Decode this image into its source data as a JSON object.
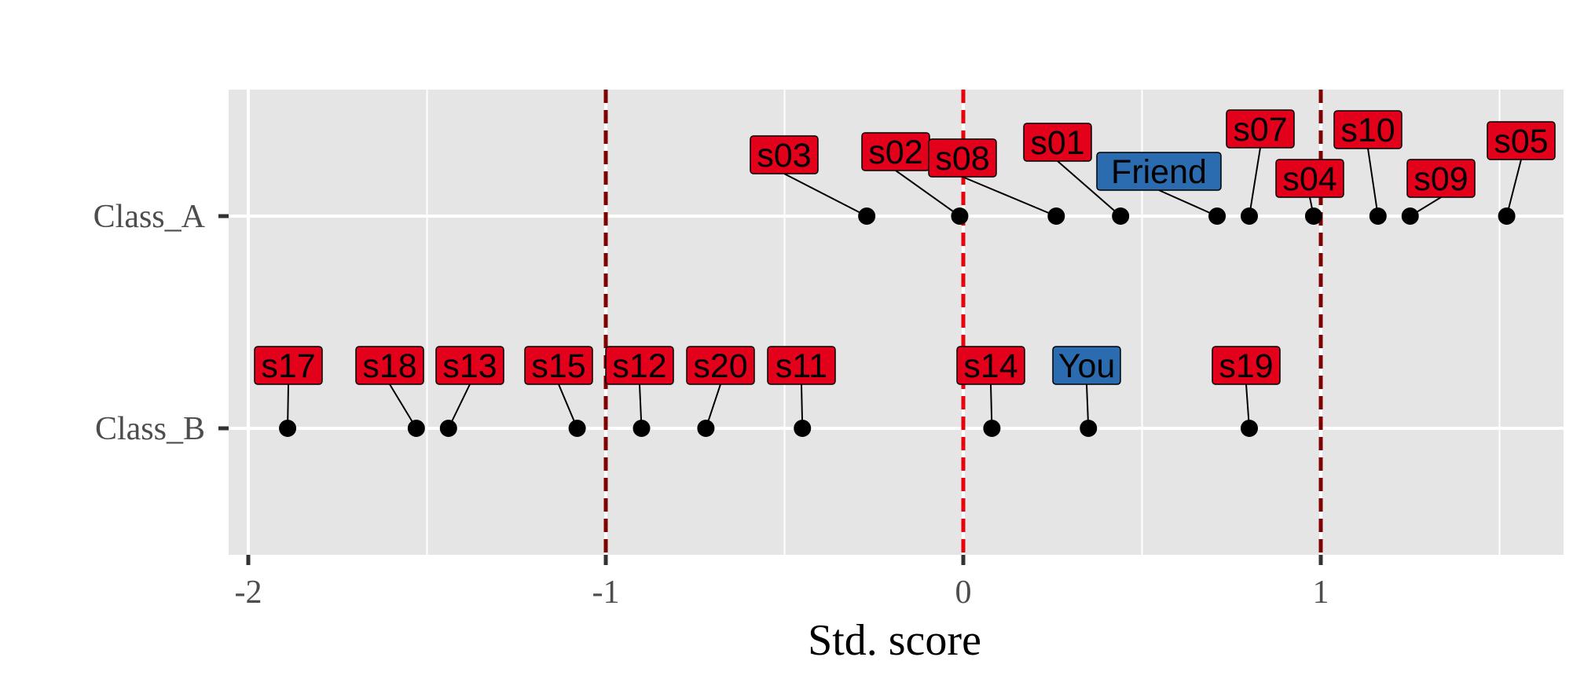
{
  "chart_data": {
    "type": "scatter",
    "xlabel": "Std. score",
    "ylabel": "",
    "xlim": [
      -2.06,
      1.68
    ],
    "x_ticks": [
      -2,
      -1,
      0,
      1
    ],
    "x_tick_labels": [
      "-2",
      "-1",
      "0",
      "1"
    ],
    "categories": [
      "Class_A",
      "Class_B"
    ],
    "grid": true,
    "reference_lines": [
      {
        "x": -1,
        "color": "#7f0000"
      },
      {
        "x": 0,
        "color": "#e8000b"
      },
      {
        "x": 1,
        "color": "#7f0000"
      }
    ],
    "colors": {
      "other": "#e3001b",
      "highlight": "#2b6cb0",
      "point": "#000000",
      "panel": "#e5e5e5",
      "grid": "#ffffff"
    },
    "points": [
      {
        "label": "s03",
        "category": "Class_A",
        "x": -0.27,
        "highlight": false
      },
      {
        "label": "s02",
        "category": "Class_A",
        "x": -0.01,
        "highlight": false
      },
      {
        "label": "s08",
        "category": "Class_A",
        "x": 0.26,
        "highlight": false
      },
      {
        "label": "s01",
        "category": "Class_A",
        "x": 0.44,
        "highlight": false
      },
      {
        "label": "Friend",
        "category": "Class_A",
        "x": 0.71,
        "highlight": true
      },
      {
        "label": "s07",
        "category": "Class_A",
        "x": 0.8,
        "highlight": false
      },
      {
        "label": "s04",
        "category": "Class_A",
        "x": 0.98,
        "highlight": false
      },
      {
        "label": "s10",
        "category": "Class_A",
        "x": 1.16,
        "highlight": false
      },
      {
        "label": "s09",
        "category": "Class_A",
        "x": 1.25,
        "highlight": false
      },
      {
        "label": "s05",
        "category": "Class_A",
        "x": 1.52,
        "highlight": false
      },
      {
        "label": "s17",
        "category": "Class_B",
        "x": -1.89,
        "highlight": false
      },
      {
        "label": "s18",
        "category": "Class_B",
        "x": -1.53,
        "highlight": false
      },
      {
        "label": "s13",
        "category": "Class_B",
        "x": -1.44,
        "highlight": false
      },
      {
        "label": "s15",
        "category": "Class_B",
        "x": -1.08,
        "highlight": false
      },
      {
        "label": "s12",
        "category": "Class_B",
        "x": -0.9,
        "highlight": false
      },
      {
        "label": "s20",
        "category": "Class_B",
        "x": -0.72,
        "highlight": false
      },
      {
        "label": "s11",
        "category": "Class_B",
        "x": -0.45,
        "highlight": false
      },
      {
        "label": "s14",
        "category": "Class_B",
        "x": 0.08,
        "highlight": false
      },
      {
        "label": "You",
        "category": "Class_B",
        "x": 0.35,
        "highlight": true
      },
      {
        "label": "s19",
        "category": "Class_B",
        "x": 0.8,
        "highlight": false
      }
    ]
  }
}
